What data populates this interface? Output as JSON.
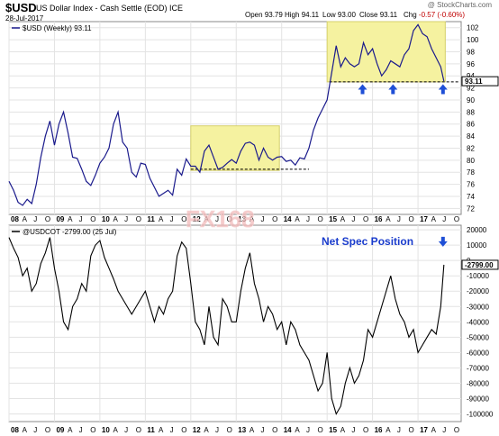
{
  "header": {
    "ticker": "$USD",
    "description": "US Dollar Index - Cash Settle (EOD) ICE",
    "date": "28-Jul-2017",
    "watermark": "@ StockCharts.com",
    "stats": {
      "open_label": "Open",
      "open": "93.79",
      "high_label": "High",
      "high": "94.11",
      "low_label": "Low",
      "low": "93.00",
      "close_label": "Close",
      "close": "93.11",
      "chg_label": "Chg",
      "chg": "-0.57 (-0.60%)"
    }
  },
  "logo_text": "FX168",
  "colors": {
    "price_line": "#1a1a8c",
    "cot_line": "#000000",
    "highlight_fill": "#f5f2a0",
    "arrow": "#1f4fd6",
    "annotation": "#1a3ccc",
    "grid": "#e3e3e3"
  },
  "chart_data": [
    {
      "type": "line",
      "legend": "$USD (Weekly) 93.11",
      "last_value_label": "93.11",
      "ylim": [
        71,
        103
      ],
      "yticks": [
        72,
        74,
        76,
        78,
        80,
        82,
        84,
        86,
        88,
        90,
        92,
        94,
        96,
        98,
        100,
        102
      ],
      "xlim": [
        2008.0,
        2017.95
      ],
      "xticks": [
        {
          "x": 2008.0,
          "label": "08"
        },
        {
          "x": 2008.25,
          "label": "A"
        },
        {
          "x": 2008.5,
          "label": "J"
        },
        {
          "x": 2008.75,
          "label": "O"
        },
        {
          "x": 2009.0,
          "label": "09"
        },
        {
          "x": 2009.25,
          "label": "A"
        },
        {
          "x": 2009.5,
          "label": "J"
        },
        {
          "x": 2009.75,
          "label": "O"
        },
        {
          "x": 2010.0,
          "label": "10"
        },
        {
          "x": 2010.25,
          "label": "A"
        },
        {
          "x": 2010.5,
          "label": "J"
        },
        {
          "x": 2010.75,
          "label": "O"
        },
        {
          "x": 2011.0,
          "label": "11"
        },
        {
          "x": 2011.25,
          "label": "A"
        },
        {
          "x": 2011.5,
          "label": "J"
        },
        {
          "x": 2011.75,
          "label": "O"
        },
        {
          "x": 2012.0,
          "label": "12"
        },
        {
          "x": 2012.25,
          "label": "A"
        },
        {
          "x": 2012.5,
          "label": "J"
        },
        {
          "x": 2012.75,
          "label": "O"
        },
        {
          "x": 2013.0,
          "label": "13"
        },
        {
          "x": 2013.25,
          "label": "A"
        },
        {
          "x": 2013.5,
          "label": "J"
        },
        {
          "x": 2013.75,
          "label": "O"
        },
        {
          "x": 2014.0,
          "label": "14"
        },
        {
          "x": 2014.25,
          "label": "A"
        },
        {
          "x": 2014.5,
          "label": "J"
        },
        {
          "x": 2014.75,
          "label": "O"
        },
        {
          "x": 2015.0,
          "label": "15"
        },
        {
          "x": 2015.25,
          "label": "A"
        },
        {
          "x": 2015.5,
          "label": "J"
        },
        {
          "x": 2015.75,
          "label": "O"
        },
        {
          "x": 2016.0,
          "label": "16"
        },
        {
          "x": 2016.25,
          "label": "A"
        },
        {
          "x": 2016.5,
          "label": "J"
        },
        {
          "x": 2016.75,
          "label": "O"
        },
        {
          "x": 2017.0,
          "label": "17"
        },
        {
          "x": 2017.25,
          "label": "A"
        },
        {
          "x": 2017.5,
          "label": "J"
        },
        {
          "x": 2017.75,
          "label": "O"
        }
      ],
      "series": [
        {
          "name": "$USD (Weekly)",
          "x": [
            2008.0,
            2008.1,
            2008.2,
            2008.3,
            2008.4,
            2008.5,
            2008.6,
            2008.7,
            2008.8,
            2008.9,
            2009.0,
            2009.1,
            2009.2,
            2009.3,
            2009.4,
            2009.5,
            2009.6,
            2009.7,
            2009.8,
            2009.9,
            2010.0,
            2010.1,
            2010.2,
            2010.3,
            2010.4,
            2010.5,
            2010.6,
            2010.7,
            2010.8,
            2010.9,
            2011.0,
            2011.1,
            2011.2,
            2011.3,
            2011.4,
            2011.5,
            2011.6,
            2011.7,
            2011.8,
            2011.9,
            2012.0,
            2012.1,
            2012.2,
            2012.3,
            2012.4,
            2012.5,
            2012.6,
            2012.7,
            2012.8,
            2012.9,
            2013.0,
            2013.1,
            2013.2,
            2013.3,
            2013.4,
            2013.5,
            2013.6,
            2013.7,
            2013.8,
            2013.9,
            2014.0,
            2014.1,
            2014.2,
            2014.3,
            2014.4,
            2014.5,
            2014.6,
            2014.7,
            2014.8,
            2014.9,
            2015.0,
            2015.1,
            2015.2,
            2015.3,
            2015.4,
            2015.5,
            2015.6,
            2015.7,
            2015.8,
            2015.9,
            2016.0,
            2016.1,
            2016.2,
            2016.3,
            2016.4,
            2016.5,
            2016.6,
            2016.7,
            2016.8,
            2016.9,
            2017.0,
            2017.1,
            2017.2,
            2017.3,
            2017.4,
            2017.5,
            2017.57
          ],
          "values": [
            76.5,
            75.0,
            73.0,
            72.5,
            73.5,
            72.8,
            76.0,
            80.5,
            84.0,
            86.5,
            82.5,
            86.0,
            88.0,
            84.5,
            80.5,
            80.3,
            78.5,
            76.5,
            75.8,
            77.5,
            79.5,
            80.5,
            82.0,
            86.0,
            88.0,
            83.0,
            82.0,
            78.0,
            77.2,
            79.5,
            79.3,
            77.0,
            75.5,
            74.0,
            74.5,
            75.0,
            74.2,
            78.5,
            77.5,
            80.2,
            79.0,
            79.0,
            78.0,
            81.5,
            82.5,
            80.5,
            78.5,
            78.8,
            79.5,
            80.1,
            79.5,
            81.5,
            82.8,
            83.0,
            82.5,
            80.0,
            82.0,
            80.5,
            80.0,
            80.5,
            80.6,
            79.8,
            80.0,
            79.2,
            80.4,
            80.2,
            82.0,
            85.0,
            87.0,
            88.5,
            90.0,
            94.5,
            99.0,
            95.5,
            97.0,
            96.0,
            95.5,
            96.0,
            99.5,
            97.5,
            98.5,
            96.0,
            94.0,
            95.0,
            96.5,
            96.0,
            95.5,
            97.5,
            98.5,
            101.5,
            102.5,
            101.0,
            100.5,
            98.5,
            97.0,
            95.5,
            93.11
          ]
        }
      ],
      "support_levels": [
        {
          "value": 78.5,
          "x": [
            2012.0,
            2014.6
          ]
        },
        {
          "value": 93.0,
          "x": [
            2015.05,
            2017.9
          ]
        }
      ],
      "highlight_boxes": [
        {
          "x": [
            2012.0,
            2013.95
          ],
          "y": [
            78.3,
            85.7
          ]
        },
        {
          "x": [
            2015.0,
            2017.6
          ],
          "y": [
            93.0,
            103.0
          ]
        }
      ],
      "arrows": [
        {
          "x": 2015.78,
          "dir": "up"
        },
        {
          "x": 2016.45,
          "dir": "up"
        },
        {
          "x": 2017.55,
          "dir": "up"
        }
      ]
    },
    {
      "type": "line",
      "legend": "@USDCOT -2799.00 (25 Jul)",
      "annotation": "Net Spec Position",
      "last_value_label": "-2799.00",
      "ylim": [
        -105000,
        23000
      ],
      "yticks": [
        20000,
        10000,
        0,
        -10000,
        -20000,
        -30000,
        -40000,
        -50000,
        -60000,
        -70000,
        -80000,
        -90000,
        -100000
      ],
      "xticks_ref": 0,
      "series": [
        {
          "name": "@USDCOT",
          "x": [
            2008.0,
            2008.1,
            2008.2,
            2008.3,
            2008.4,
            2008.5,
            2008.6,
            2008.7,
            2008.8,
            2008.9,
            2009.0,
            2009.1,
            2009.2,
            2009.3,
            2009.4,
            2009.5,
            2009.6,
            2009.7,
            2009.8,
            2009.9,
            2010.0,
            2010.1,
            2010.2,
            2010.3,
            2010.4,
            2010.5,
            2010.6,
            2010.7,
            2010.8,
            2010.9,
            2011.0,
            2011.1,
            2011.2,
            2011.3,
            2011.4,
            2011.5,
            2011.6,
            2011.7,
            2011.8,
            2011.9,
            2012.0,
            2012.1,
            2012.2,
            2012.3,
            2012.4,
            2012.5,
            2012.6,
            2012.7,
            2012.8,
            2012.9,
            2013.0,
            2013.1,
            2013.2,
            2013.3,
            2013.4,
            2013.5,
            2013.6,
            2013.7,
            2013.8,
            2013.9,
            2014.0,
            2014.1,
            2014.2,
            2014.3,
            2014.4,
            2014.5,
            2014.6,
            2014.7,
            2014.8,
            2014.9,
            2015.0,
            2015.1,
            2015.2,
            2015.3,
            2015.4,
            2015.5,
            2015.6,
            2015.7,
            2015.8,
            2015.9,
            2016.0,
            2016.1,
            2016.2,
            2016.3,
            2016.4,
            2016.5,
            2016.6,
            2016.7,
            2016.8,
            2016.9,
            2017.0,
            2017.1,
            2017.2,
            2017.3,
            2017.4,
            2017.5,
            2017.57
          ],
          "values": [
            15000,
            8000,
            2000,
            -10000,
            -5000,
            -20000,
            -15000,
            -2000,
            5000,
            15000,
            -5000,
            -20000,
            -40000,
            -45000,
            -30000,
            -25000,
            -15000,
            -20000,
            3000,
            10000,
            13000,
            2000,
            -5000,
            -12000,
            -20000,
            -25000,
            -30000,
            -35000,
            -30000,
            -25000,
            -20000,
            -30000,
            -40000,
            -30000,
            -35000,
            -25000,
            -20000,
            3000,
            12000,
            8000,
            -15000,
            -40000,
            -45000,
            -55000,
            -30000,
            -50000,
            -55000,
            -25000,
            -30000,
            -40000,
            -40000,
            -20000,
            -5000,
            5000,
            -15000,
            -25000,
            -40000,
            -30000,
            -35000,
            -45000,
            -40000,
            -55000,
            -40000,
            -45000,
            -55000,
            -60000,
            -65000,
            -75000,
            -85000,
            -80000,
            -60000,
            -90000,
            -100000,
            -95000,
            -80000,
            -70000,
            -80000,
            -75000,
            -65000,
            -45000,
            -50000,
            -40000,
            -30000,
            -20000,
            -10000,
            -25000,
            -35000,
            -40000,
            -50000,
            -45000,
            -60000,
            -55000,
            -50000,
            -45000,
            -48000,
            -30000,
            -2799
          ]
        }
      ],
      "arrows": [
        {
          "x": 2017.55,
          "dir": "down"
        }
      ]
    }
  ]
}
